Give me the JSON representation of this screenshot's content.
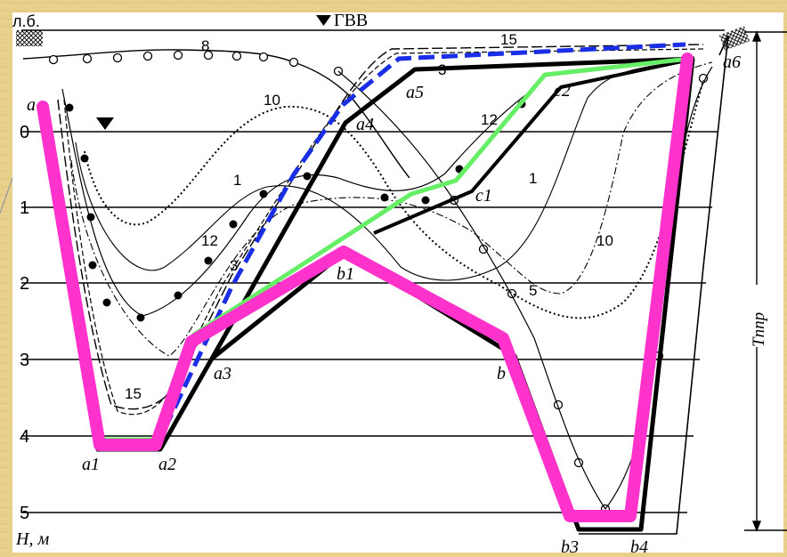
{
  "header": {
    "left_bank_label": "л.б.",
    "water_level_label": "ГВВ"
  },
  "axis": {
    "y_label": "H, м",
    "y_ticks": [
      "0",
      "1",
      "2",
      "3",
      "4",
      "5"
    ],
    "span_label": "Tппр"
  },
  "points": {
    "a": "a",
    "a1": "a1",
    "a2": "a2",
    "a3": "a3",
    "a4": "a4",
    "a5": "a5",
    "a6": "a6",
    "b1": "b1",
    "b2": "b",
    "b3": "b3",
    "b4": "b4",
    "c1": "c1",
    "c2": "c2"
  },
  "profile_labels": {
    "p8": "8",
    "p10_left": "10",
    "p15_top": "15",
    "p3_top": "3",
    "p12_right": "12",
    "p1_left": "1",
    "p12_left": "12",
    "p3_left": "3",
    "p1_right": "1",
    "p10_right": "10",
    "p5": "5",
    "p15_bottom": "15"
  },
  "colors": {
    "background": "#e8cf8a",
    "magenta": "#ff33cc",
    "green": "#66ee66",
    "blue": "#1a2ee6",
    "black": "#000000"
  }
}
